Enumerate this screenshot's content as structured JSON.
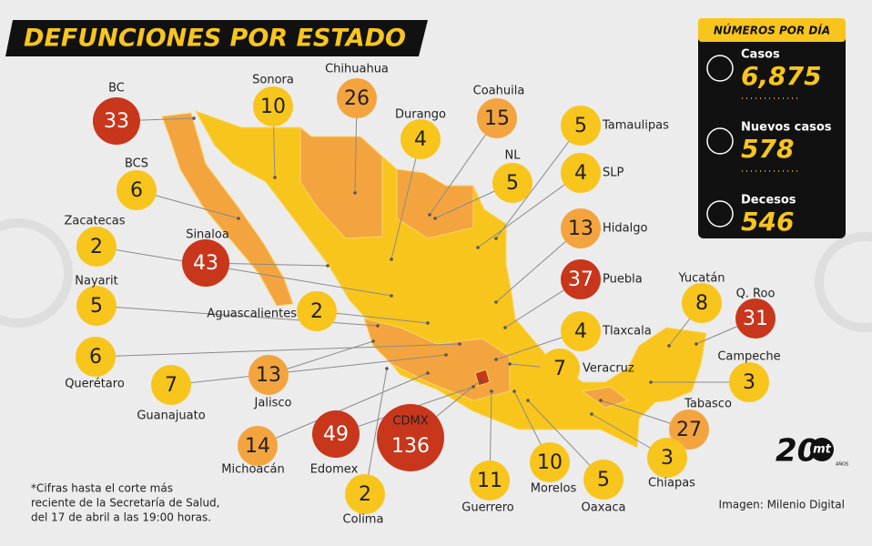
{
  "header": {
    "title": "DEFUNCIONES POR ESTADO"
  },
  "states": [
    {
      "name": "BC",
      "deaths": 33,
      "color": "#c8361b"
    },
    {
      "name": "Sonora",
      "deaths": 10,
      "color": "#f8c51d"
    },
    {
      "name": "Chihuahua",
      "deaths": 26,
      "color": "#f4a43f"
    },
    {
      "name": "Durango",
      "deaths": 4,
      "color": "#f8c51d"
    },
    {
      "name": "Coahuila",
      "deaths": 15,
      "color": "#f4a43f"
    },
    {
      "name": "Tamaulipas",
      "deaths": 5,
      "color": "#f8c51d"
    },
    {
      "name": "NL",
      "deaths": 5,
      "color": "#f8c51d"
    },
    {
      "name": "SLP",
      "deaths": 4,
      "color": "#f8c51d"
    },
    {
      "name": "Hidalgo",
      "deaths": 13,
      "color": "#f4a43f"
    },
    {
      "name": "Puebla",
      "deaths": 37,
      "color": "#c8361b"
    },
    {
      "name": "Tlaxcala",
      "deaths": 4,
      "color": "#f8c51d"
    },
    {
      "name": "Veracruz",
      "deaths": 7,
      "color": "#f8c51d"
    },
    {
      "name": "Yucatán",
      "deaths": 8,
      "color": "#f8c51d"
    },
    {
      "name": "Q. Roo",
      "deaths": 31,
      "color": "#c8361b"
    },
    {
      "name": "Campeche",
      "deaths": 3,
      "color": "#f8c51d"
    },
    {
      "name": "Tabasco",
      "deaths": 27,
      "color": "#f4a43f"
    },
    {
      "name": "Chiapas",
      "deaths": 3,
      "color": "#f8c51d"
    },
    {
      "name": "Oaxaca",
      "deaths": 5,
      "color": "#f8c51d"
    },
    {
      "name": "Morelos",
      "deaths": 10,
      "color": "#f8c51d"
    },
    {
      "name": "Guerrero",
      "deaths": 11,
      "color": "#f8c51d"
    },
    {
      "name": "CDMX",
      "deaths": 136,
      "color": "#c8361b"
    },
    {
      "name": "Edomex",
      "deaths": 49,
      "color": "#c8361b"
    },
    {
      "name": "Colima",
      "deaths": 2,
      "color": "#f8c51d"
    },
    {
      "name": "Michoacán",
      "deaths": 14,
      "color": "#f4a43f"
    },
    {
      "name": "Jalisco",
      "deaths": 13,
      "color": "#f4a43f"
    },
    {
      "name": "Guanajuato",
      "deaths": 7,
      "color": "#f8c51d"
    },
    {
      "name": "Querétaro",
      "deaths": 6,
      "color": "#f8c51d"
    },
    {
      "name": "Nayarit",
      "deaths": 5,
      "color": "#f8c51d"
    },
    {
      "name": "Aguascalientes",
      "deaths": 2,
      "color": "#f8c51d"
    },
    {
      "name": "Zacatecas",
      "deaths": 2,
      "color": "#f8c51d"
    },
    {
      "name": "Sinaloa",
      "deaths": 43,
      "color": "#c8361b"
    },
    {
      "name": "BCS",
      "deaths": 6,
      "color": "#f8c51d"
    }
  ],
  "daily": {
    "title": "NÚMEROS POR DÍA",
    "items": [
      {
        "label": "Casos",
        "value": "6,875"
      },
      {
        "label": "Nuevos casos",
        "value": "578"
      },
      {
        "label": "Decesos",
        "value": "546"
      }
    ]
  },
  "footnote": [
    "*Cifras hasta el corte más",
    "reciente de la Secretaría de Salud,",
    "del 17 de abril a las 19:00 horas."
  ],
  "credit": "Imagen: Milenio Digital",
  "logo": {
    "number": "20",
    "brand": "mt",
    "sub": "AÑOS"
  }
}
